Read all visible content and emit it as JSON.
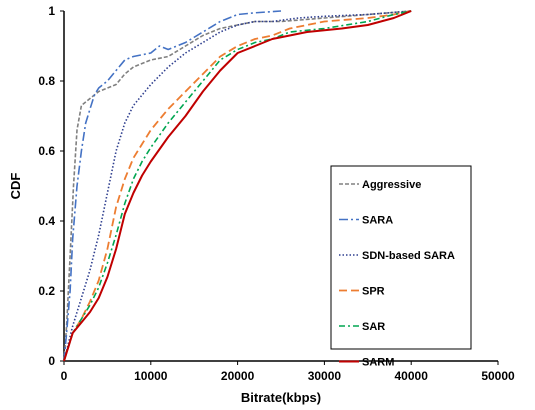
{
  "chart_data": {
    "type": "line",
    "title": "",
    "xlabel": "Bitrate(kbps)",
    "ylabel": "CDF",
    "xlim": [
      0,
      50000
    ],
    "ylim": [
      0,
      1
    ],
    "xticks": [
      "0",
      "10000",
      "20000",
      "30000",
      "40000",
      "50000"
    ],
    "yticks": [
      "0",
      "0.2",
      "0.4",
      "0.6",
      "0.8",
      "1"
    ],
    "grid": false,
    "legend_position": "lower-right",
    "series": [
      {
        "name": "Aggressive",
        "color": "#808080",
        "dash": "4,2",
        "width": 1.6,
        "points": [
          [
            0,
            0
          ],
          [
            300,
            0.1
          ],
          [
            700,
            0.3
          ],
          [
            1100,
            0.5
          ],
          [
            1500,
            0.66
          ],
          [
            2000,
            0.73
          ],
          [
            3000,
            0.75
          ],
          [
            4000,
            0.77
          ],
          [
            5000,
            0.78
          ],
          [
            6000,
            0.79
          ],
          [
            7000,
            0.82
          ],
          [
            8000,
            0.84
          ],
          [
            10000,
            0.86
          ],
          [
            12000,
            0.87
          ],
          [
            14000,
            0.9
          ],
          [
            16000,
            0.93
          ],
          [
            18000,
            0.95
          ],
          [
            20000,
            0.96
          ],
          [
            22000,
            0.97
          ],
          [
            25000,
            0.97
          ],
          [
            30000,
            0.98
          ],
          [
            35000,
            0.99
          ],
          [
            40000,
            1.0
          ]
        ]
      },
      {
        "name": "SARA",
        "color": "#4472C4",
        "dash": "9,3,2,3",
        "width": 1.6,
        "points": [
          [
            0,
            0
          ],
          [
            300,
            0.08
          ],
          [
            700,
            0.2
          ],
          [
            1000,
            0.35
          ],
          [
            1500,
            0.5
          ],
          [
            2000,
            0.6
          ],
          [
            2500,
            0.68
          ],
          [
            3000,
            0.72
          ],
          [
            3500,
            0.76
          ],
          [
            4000,
            0.78
          ],
          [
            5000,
            0.8
          ],
          [
            6000,
            0.83
          ],
          [
            7000,
            0.86
          ],
          [
            8000,
            0.87
          ],
          [
            10000,
            0.88
          ],
          [
            11000,
            0.9
          ],
          [
            12000,
            0.89
          ],
          [
            14000,
            0.91
          ],
          [
            16000,
            0.94
          ],
          [
            18000,
            0.97
          ],
          [
            20000,
            0.99
          ],
          [
            22000,
            0.995
          ],
          [
            25000,
            1.0
          ]
        ]
      },
      {
        "name": "SDN-based SARA",
        "color": "#2F3F8F",
        "dash": "1.5,2",
        "width": 1.6,
        "points": [
          [
            0,
            0
          ],
          [
            1000,
            0.1
          ],
          [
            2000,
            0.18
          ],
          [
            3000,
            0.26
          ],
          [
            4000,
            0.36
          ],
          [
            5000,
            0.48
          ],
          [
            6000,
            0.6
          ],
          [
            7000,
            0.68
          ],
          [
            8000,
            0.73
          ],
          [
            9000,
            0.76
          ],
          [
            10000,
            0.79
          ],
          [
            12000,
            0.84
          ],
          [
            14000,
            0.88
          ],
          [
            16000,
            0.91
          ],
          [
            18000,
            0.94
          ],
          [
            20000,
            0.96
          ],
          [
            22000,
            0.97
          ],
          [
            24000,
            0.97
          ],
          [
            27000,
            0.98
          ],
          [
            30000,
            0.985
          ],
          [
            35000,
            0.99
          ],
          [
            40000,
            1.0
          ]
        ]
      },
      {
        "name": "SPR",
        "color": "#ED7D31",
        "dash": "8,4",
        "width": 1.8,
        "points": [
          [
            0,
            0
          ],
          [
            1000,
            0.08
          ],
          [
            2000,
            0.12
          ],
          [
            3000,
            0.17
          ],
          [
            4000,
            0.23
          ],
          [
            5000,
            0.32
          ],
          [
            6000,
            0.44
          ],
          [
            7000,
            0.52
          ],
          [
            8000,
            0.58
          ],
          [
            9000,
            0.62
          ],
          [
            10000,
            0.66
          ],
          [
            11000,
            0.69
          ],
          [
            12000,
            0.72
          ],
          [
            14000,
            0.77
          ],
          [
            16000,
            0.82
          ],
          [
            18000,
            0.87
          ],
          [
            20000,
            0.9
          ],
          [
            22000,
            0.92
          ],
          [
            24000,
            0.93
          ],
          [
            26000,
            0.95
          ],
          [
            28000,
            0.96
          ],
          [
            30000,
            0.97
          ],
          [
            35000,
            0.98
          ],
          [
            38000,
            0.99
          ],
          [
            40000,
            1.0
          ]
        ]
      },
      {
        "name": "SAR",
        "color": "#00A651",
        "dash": "6,3,2,3",
        "width": 1.6,
        "points": [
          [
            0,
            0
          ],
          [
            1000,
            0.08
          ],
          [
            2000,
            0.12
          ],
          [
            3000,
            0.16
          ],
          [
            4000,
            0.21
          ],
          [
            5000,
            0.28
          ],
          [
            6000,
            0.36
          ],
          [
            7000,
            0.45
          ],
          [
            8000,
            0.52
          ],
          [
            9000,
            0.57
          ],
          [
            10000,
            0.61
          ],
          [
            12000,
            0.68
          ],
          [
            14000,
            0.74
          ],
          [
            16000,
            0.8
          ],
          [
            18000,
            0.86
          ],
          [
            20000,
            0.89
          ],
          [
            22000,
            0.91
          ],
          [
            24000,
            0.92
          ],
          [
            26000,
            0.94
          ],
          [
            30000,
            0.95
          ],
          [
            35000,
            0.97
          ],
          [
            38000,
            0.99
          ],
          [
            40000,
            1.0
          ]
        ]
      },
      {
        "name": "SARM",
        "color": "#C00000",
        "dash": "",
        "width": 2,
        "points": [
          [
            0,
            0
          ],
          [
            1000,
            0.08
          ],
          [
            2000,
            0.11
          ],
          [
            3000,
            0.14
          ],
          [
            4000,
            0.18
          ],
          [
            5000,
            0.24
          ],
          [
            6000,
            0.32
          ],
          [
            7000,
            0.42
          ],
          [
            8000,
            0.48
          ],
          [
            9000,
            0.53
          ],
          [
            10000,
            0.57
          ],
          [
            12000,
            0.64
          ],
          [
            14000,
            0.7
          ],
          [
            16000,
            0.77
          ],
          [
            18000,
            0.83
          ],
          [
            20000,
            0.88
          ],
          [
            22000,
            0.9
          ],
          [
            24000,
            0.92
          ],
          [
            26000,
            0.93
          ],
          [
            28000,
            0.94
          ],
          [
            30000,
            0.945
          ],
          [
            32000,
            0.95
          ],
          [
            35000,
            0.96
          ],
          [
            38000,
            0.98
          ],
          [
            40000,
            1.0
          ]
        ]
      }
    ]
  }
}
